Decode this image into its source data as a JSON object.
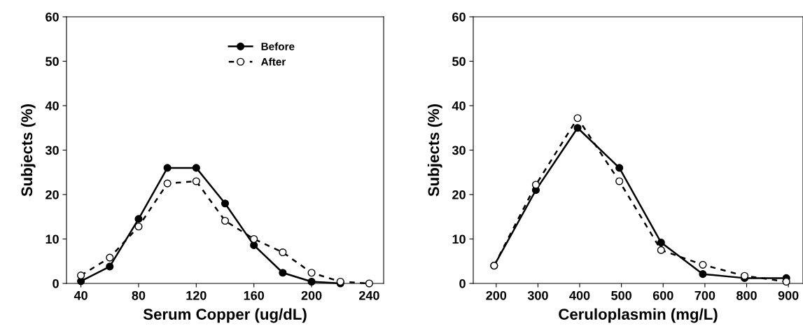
{
  "chart_data": [
    {
      "type": "line",
      "xlabel": "Serum Copper (ug/dL)",
      "ylabel": "Subjects (%)",
      "xlim": [
        30,
        250
      ],
      "ylim": [
        0,
        60
      ],
      "xticks": [
        40,
        80,
        120,
        160,
        200,
        240
      ],
      "yticks": [
        0,
        10,
        20,
        30,
        40,
        50,
        60
      ],
      "grid": false,
      "legend": "top right",
      "marker": "circle",
      "series": [
        {
          "name": "Before",
          "color": "#000000",
          "line_style": "solid",
          "x": [
            40,
            60,
            80,
            100,
            120,
            140,
            160,
            180,
            200,
            220
          ],
          "values": [
            0.5,
            3.8,
            14.5,
            26,
            26,
            18,
            8.6,
            2.4,
            0.4,
            0
          ]
        },
        {
          "name": "After",
          "color": "#000000",
          "line_style": "dashed",
          "x": [
            40,
            60,
            80,
            100,
            120,
            140,
            160,
            180,
            200,
            220,
            240
          ],
          "values": [
            1.8,
            5.8,
            12.8,
            22.5,
            23,
            14.1,
            10,
            7,
            2.4,
            0.4,
            0
          ]
        }
      ]
    },
    {
      "type": "line",
      "xlabel": "Ceruloplasmin (mg/L)",
      "ylabel": "Subjects (%)",
      "xlim": [
        145,
        935
      ],
      "ylim": [
        0,
        60
      ],
      "xticks": [
        200,
        300,
        400,
        500,
        600,
        700,
        800,
        900
      ],
      "yticks": [
        0,
        10,
        20,
        30,
        40,
        50,
        60
      ],
      "grid": false,
      "legend": false,
      "marker": "circle",
      "series": [
        {
          "color": "#000000",
          "line_style": "solid",
          "x": [
            195,
            295,
            395,
            495,
            595,
            695,
            795,
            895
          ],
          "values": [
            4,
            21,
            35,
            26,
            9.2,
            2.1,
            1.2,
            1.2
          ]
        },
        {
          "color": "#000000",
          "line_style": "dashed",
          "x": [
            195,
            295,
            395,
            495,
            595,
            695,
            795,
            895
          ],
          "values": [
            4,
            22.2,
            37.2,
            23,
            7.5,
            4.2,
            1.7,
            0.4
          ]
        }
      ]
    }
  ]
}
